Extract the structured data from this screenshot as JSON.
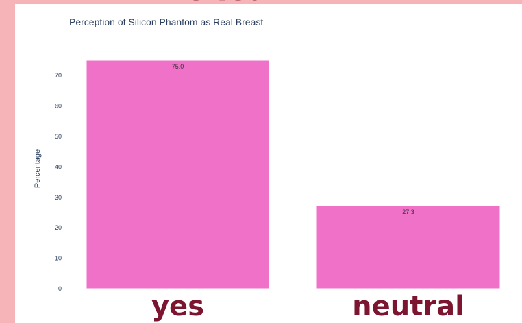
{
  "background": {
    "color": "#f6b3b8"
  },
  "banner": {
    "partial_text": "to learn"
  },
  "chart_data": {
    "type": "bar",
    "title": "Perception of Silicon Phantom as Real Breast",
    "ylabel": "Percentage",
    "xlabel": "",
    "categories": [
      "yes",
      "neutral"
    ],
    "values": [
      75.0,
      27.3
    ],
    "data_labels": [
      "75.0",
      "27.3"
    ],
    "ylim": [
      0,
      75
    ],
    "yticks": [
      0,
      10,
      20,
      30,
      40,
      50,
      60,
      70
    ],
    "bar_color": "#f072c8",
    "category_label_color": "#7b1530",
    "grid": false,
    "legend": "none"
  }
}
